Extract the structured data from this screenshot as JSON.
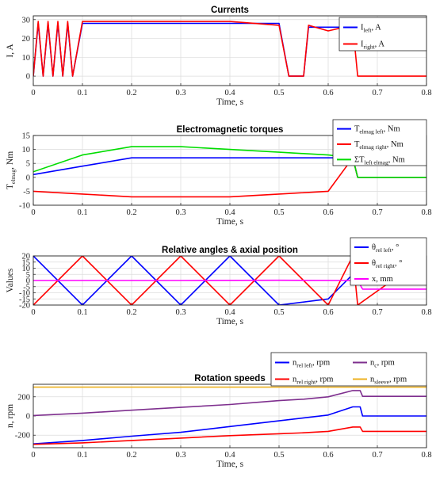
{
  "chart_data": [
    {
      "type": "line",
      "title": "Currents",
      "xlabel": "Time, s",
      "ylabel": "I, A",
      "xlim": [
        0,
        0.8
      ],
      "ylim": [
        -5,
        32
      ],
      "xticks": [
        "0",
        "0.1",
        "0.2",
        "0.3",
        "0.4",
        "0.5",
        "0.6",
        "0.7",
        "0.8"
      ],
      "yticks": [
        "0",
        "10",
        "20",
        "30"
      ],
      "grid": true,
      "legend_position": "top-right",
      "series": [
        {
          "name": "I",
          "name_sub": "left",
          "name_unit": ", A",
          "color": "#0000ff",
          "x": [
            0,
            0.01,
            0.02,
            0.03,
            0.04,
            0.05,
            0.06,
            0.07,
            0.08,
            0.1,
            0.2,
            0.3,
            0.4,
            0.5,
            0.52,
            0.55,
            0.56,
            0.6,
            0.65,
            0.66,
            0.8
          ],
          "y": [
            0,
            28,
            0,
            28,
            0,
            28,
            0,
            28,
            0,
            28,
            28,
            28,
            28,
            28,
            0,
            0,
            26,
            26,
            26,
            15,
            15
          ]
        },
        {
          "name": "I",
          "name_sub": "right",
          "name_unit": ", A",
          "color": "#ff0000",
          "x": [
            0,
            0.01,
            0.02,
            0.03,
            0.04,
            0.05,
            0.06,
            0.07,
            0.08,
            0.1,
            0.2,
            0.3,
            0.4,
            0.5,
            0.52,
            0.55,
            0.56,
            0.6,
            0.65,
            0.66,
            0.8
          ],
          "y": [
            0,
            29,
            0,
            29,
            0,
            29,
            0,
            29,
            0,
            29,
            29,
            29,
            29,
            27,
            0,
            0,
            27,
            24,
            27,
            0,
            0
          ]
        }
      ]
    },
    {
      "type": "line",
      "title": "Electromagnetic torques",
      "xlabel": "Time, s",
      "ylabel": "T",
      "ylabel_sub": "elmag",
      "ylabel_unit": ", Nm",
      "xlim": [
        0,
        0.8
      ],
      "ylim": [
        -10,
        15
      ],
      "xticks": [
        "0",
        "0.1",
        "0.2",
        "0.3",
        "0.4",
        "0.5",
        "0.6",
        "0.7",
        "0.8"
      ],
      "yticks": [
        "-10",
        "-5",
        "0",
        "5",
        "10",
        "15"
      ],
      "grid": true,
      "legend_position": "top-right",
      "series": [
        {
          "name": "T",
          "name_sub": "elmag left",
          "name_unit": ", Nm",
          "color": "#0000ff",
          "x": [
            0,
            0.1,
            0.2,
            0.3,
            0.4,
            0.5,
            0.6,
            0.65,
            0.66,
            0.8
          ],
          "y": [
            1,
            4,
            7,
            7,
            7,
            7,
            7,
            7,
            0,
            0
          ]
        },
        {
          "name": "T",
          "name_sub": "elmag right",
          "name_unit": ", Nm",
          "color": "#ff0000",
          "x": [
            0,
            0.1,
            0.2,
            0.3,
            0.4,
            0.5,
            0.6,
            0.65,
            0.66,
            0.8
          ],
          "y": [
            -5,
            -6,
            -7,
            -7,
            -7,
            -6,
            -5,
            7,
            0,
            0
          ]
        },
        {
          "name": "ΣT",
          "name_sub": "left elmag",
          "name_unit": ", Nm",
          "color": "#00dd00",
          "x": [
            0,
            0.1,
            0.2,
            0.3,
            0.4,
            0.5,
            0.6,
            0.65,
            0.66,
            0.8
          ],
          "y": [
            2,
            8,
            11,
            11,
            10,
            9,
            8,
            7,
            0,
            0
          ]
        }
      ]
    },
    {
      "type": "line",
      "title": "Relative angles & axial position",
      "xlabel": "Time, s",
      "ylabel": "Values",
      "xlim": [
        0,
        0.8
      ],
      "ylim": [
        -20,
        20
      ],
      "xticks": [
        "0",
        "0.1",
        "0.2",
        "0.3",
        "0.4",
        "0.5",
        "0.6",
        "0.7",
        "0.8"
      ],
      "yticks": [
        "-20",
        "-15",
        "-10",
        "-5",
        "0",
        "5",
        "10",
        "15",
        "20"
      ],
      "grid": true,
      "legend_position": "top-right",
      "series": [
        {
          "name": "θ",
          "name_sub": "rel left",
          "name_unit": ", °",
          "color": "#0000ff",
          "x": [
            0,
            0.1,
            0.2,
            0.3,
            0.4,
            0.5,
            0.6,
            0.65,
            0.66,
            0.8
          ],
          "y": [
            20,
            -20,
            20,
            -20,
            20,
            -20,
            -15,
            5,
            20,
            20
          ]
        },
        {
          "name": "θ",
          "name_sub": "rel right",
          "name_unit": ", °",
          "color": "#ff0000",
          "x": [
            0,
            0.1,
            0.2,
            0.3,
            0.4,
            0.5,
            0.6,
            0.65,
            0.66,
            0.8
          ],
          "y": [
            -20,
            20,
            -20,
            20,
            -20,
            20,
            -20,
            20,
            -20,
            20
          ]
        },
        {
          "name": "x",
          "name_sub": "",
          "name_unit": ", mm",
          "color": "#ff00ff",
          "x": [
            0,
            0.3,
            0.5,
            0.64,
            0.66,
            0.67,
            0.8
          ],
          "y": [
            0,
            0,
            0.2,
            0,
            0,
            -7,
            -7
          ]
        }
      ]
    },
    {
      "type": "line",
      "title": "Rotation speeds",
      "xlabel": "Time, s",
      "ylabel": "n, rpm",
      "xlim": [
        0,
        0.8
      ],
      "ylim": [
        -330,
        330
      ],
      "xticks": [
        "0",
        "0.1",
        "0.2",
        "0.3",
        "0.4",
        "0.5",
        "0.6",
        "0.7",
        "0.8"
      ],
      "yticks": [
        "-200",
        "0",
        "200"
      ],
      "grid": true,
      "legend_position": "top-right",
      "series": [
        {
          "name": "n",
          "name_sub": "rel left",
          "name_unit": ", rpm",
          "color": "#0000ff",
          "x": [
            0,
            0.1,
            0.2,
            0.3,
            0.4,
            0.5,
            0.55,
            0.6,
            0.65,
            0.665,
            0.67,
            0.8
          ],
          "y": [
            -290,
            -255,
            -210,
            -170,
            -110,
            -50,
            -20,
            10,
            95,
            95,
            0,
            0
          ]
        },
        {
          "name": "n",
          "name_sub": "rel right",
          "name_unit": ", rpm",
          "color": "#ff0000",
          "x": [
            0,
            0.1,
            0.2,
            0.3,
            0.4,
            0.5,
            0.55,
            0.6,
            0.65,
            0.665,
            0.67,
            0.8
          ],
          "y": [
            -295,
            -280,
            -255,
            -230,
            -205,
            -185,
            -175,
            -160,
            -115,
            -115,
            -160,
            -160
          ]
        },
        {
          "name": "n",
          "name_sub": "c",
          "name_unit": ", rpm",
          "color": "#7e2f8e",
          "x": [
            0,
            0.1,
            0.2,
            0.3,
            0.4,
            0.5,
            0.55,
            0.6,
            0.65,
            0.665,
            0.67,
            0.8
          ],
          "y": [
            5,
            30,
            60,
            90,
            120,
            160,
            175,
            200,
            265,
            265,
            205,
            205
          ]
        },
        {
          "name": "n",
          "name_sub": "sleeve",
          "name_unit": ", rpm",
          "color": "#edb120",
          "x": [
            0,
            0.8
          ],
          "y": [
            300,
            300
          ]
        }
      ]
    }
  ]
}
